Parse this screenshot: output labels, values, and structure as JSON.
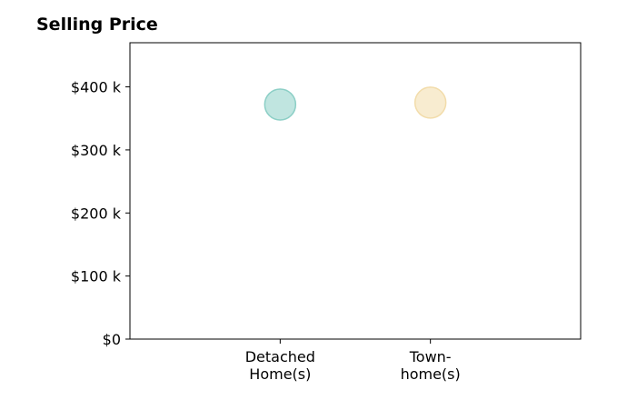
{
  "chart_data": {
    "type": "scatter",
    "title": "Selling Price",
    "categories": [
      [
        "Detached",
        "Home(s)"
      ],
      [
        "Town-",
        "home(s)"
      ]
    ],
    "y_ticks": [
      0,
      100,
      200,
      300,
      400
    ],
    "y_tick_labels": [
      "$0",
      "$100 k",
      "$200 k",
      "$300 k",
      "$400 k"
    ],
    "ylim": [
      0,
      470
    ],
    "xlim": [
      0,
      3
    ],
    "points": [
      {
        "category_index": 0,
        "x": 1,
        "y": 372,
        "color": "#8ccfc6"
      },
      {
        "category_index": 1,
        "x": 2,
        "y": 375,
        "color": "#f2dcaa"
      }
    ],
    "grid": false,
    "legend": "none"
  }
}
